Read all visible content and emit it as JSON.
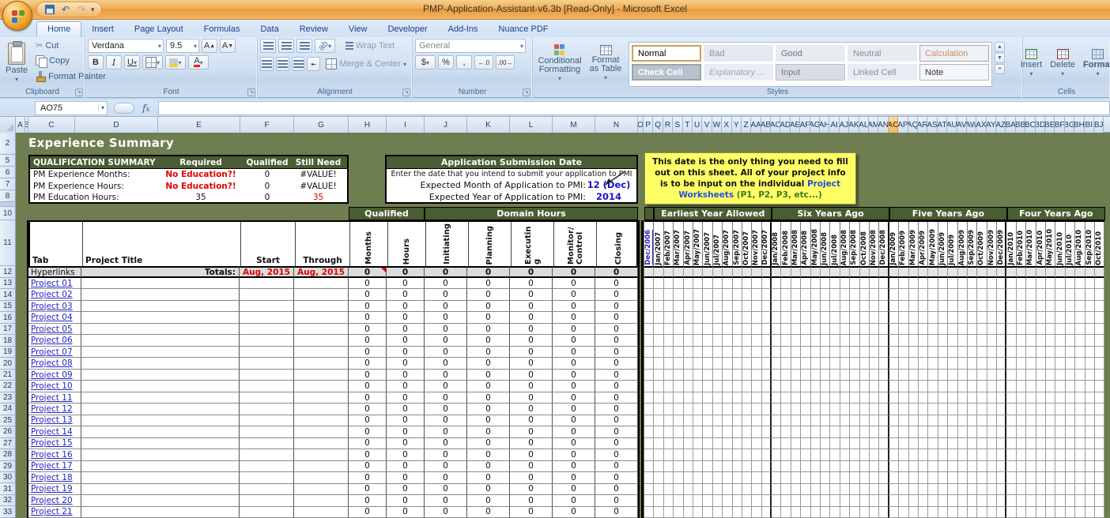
{
  "title_bar": {
    "title": "PMP-Application-Assistant-v6.3b  [Read-Only] - Microsoft Excel"
  },
  "ribbon": {
    "tabs": [
      "Home",
      "Insert",
      "Page Layout",
      "Formulas",
      "Data",
      "Review",
      "View",
      "Developer",
      "Add-Ins",
      "Nuance PDF"
    ],
    "active_tab": "Home",
    "clipboard": {
      "label": "Clipboard",
      "paste": "Paste",
      "cut": "Cut",
      "copy": "Copy",
      "format_painter": "Format Painter"
    },
    "font": {
      "label": "Font",
      "family": "Verdana",
      "size": "9.5"
    },
    "alignment": {
      "label": "Alignment",
      "wrap_text": "Wrap Text",
      "merge_center": "Merge & Center"
    },
    "number": {
      "label": "Number",
      "format": "General"
    },
    "styles": {
      "label": "Styles",
      "conditional": "Conditional Formatting",
      "format_table": "Format as Table",
      "gallery": [
        "Normal",
        "Bad",
        "Good",
        "Neutral",
        "Calculation",
        "Check Cell",
        "Explanatory ...",
        "Input",
        "Linked Cell",
        "Note"
      ]
    },
    "cells": {
      "label": "Cells",
      "insert": "Insert",
      "delete": "Delete",
      "format": "Format"
    }
  },
  "formula_bar": {
    "name_box": "AO75"
  },
  "grid": {
    "columns": [
      "A",
      "B",
      "C",
      "D",
      "E",
      "F",
      "G",
      "H",
      "I",
      "J",
      "K",
      "L",
      "M",
      "N",
      "O",
      "P",
      "Q",
      "R",
      "S",
      "T",
      "U",
      "V",
      "W",
      "X",
      "Y",
      "Z",
      "AA",
      "AB",
      "AC",
      "AD",
      "AE",
      "AF",
      "AG",
      "AH",
      "AI",
      "AJ",
      "AK",
      "AL",
      "AM",
      "AN",
      "AO",
      "AP",
      "AQ",
      "AR",
      "AS",
      "AT",
      "AU",
      "AV",
      "AW",
      "AX",
      "AY",
      "AZ",
      "BA",
      "BB",
      "BC",
      "BD",
      "BE",
      "BF",
      "BG",
      "BH",
      "BI",
      "BJ"
    ],
    "selected_column": "AO",
    "rows": [
      "2",
      "5",
      "6",
      "7",
      "8",
      "10",
      "11",
      "12",
      "13",
      "14",
      "15",
      "16",
      "17",
      "18",
      "19",
      "20",
      "21",
      "22",
      "23",
      "24",
      "25",
      "26",
      "27",
      "28",
      "29",
      "30",
      "31",
      "32",
      "33"
    ]
  },
  "sheet": {
    "title": "Experience Summary",
    "qualification": {
      "headers": [
        "QUALIFICATION SUMMARY",
        "Required",
        "Qualified",
        "Still Need"
      ],
      "rows": [
        {
          "label": "PM Experience Months:",
          "required": "No Education?!",
          "qualified": "0",
          "still_need": "#VALUE!",
          "required_red": true,
          "still_red": false
        },
        {
          "label": "PM Experience Hours:",
          "required": "No Education?!",
          "qualified": "0",
          "still_need": "#VALUE!",
          "required_red": true,
          "still_red": false
        },
        {
          "label": "PM Education Hours:",
          "required": "35",
          "qualified": "0",
          "still_need": "35",
          "required_red": false,
          "still_red": true
        }
      ]
    },
    "submission": {
      "title": "Application Submission Date",
      "instruction": "Enter the date that you intend to submit your application to PMI",
      "month_label": "Expected Month of Application to PMI:",
      "month_value": "12 (Dec)",
      "year_label": "Expected Year of Application to PMI:",
      "year_value": "2014"
    },
    "note": {
      "text_before": "This date is the only thing you need to fill out on this sheet. All of your project info is to be input on the individual ",
      "link_text": "Project Worksheets",
      "text_after": " (P1, P2, P3, etc...)"
    },
    "table": {
      "group_qualified": "Qualified",
      "group_domain": "Domain Hours",
      "col_tab": "Tab",
      "col_title": "Project Title",
      "col_start": "Start",
      "col_through": "Through",
      "v_headers": [
        "Months",
        "Hours",
        "Initiating",
        "Planning",
        "Executin g",
        "Monitor/ Control",
        "Closing"
      ],
      "totals": {
        "tab": "Hyperlinks",
        "label": "Totals:",
        "start": "Aug, 2015",
        "through": "Aug, 2015",
        "values": [
          "0",
          "0",
          "0",
          "0",
          "0",
          "0",
          "0"
        ]
      },
      "projects": [
        "Project 01",
        "Project 02",
        "Project 03",
        "Project 04",
        "Project 05",
        "Project 06",
        "Project 07",
        "Project 08",
        "Project 09",
        "Project 10",
        "Project 11",
        "Project 12",
        "Project 13",
        "Project 14",
        "Project 15",
        "Project 16",
        "Project 17",
        "Project 18",
        "Project 19",
        "Project 20",
        "Project 21"
      ],
      "project_cell_value": "0"
    },
    "years": {
      "groups": [
        {
          "label": "Earliest Year Allowed",
          "months": [
            "Dec/2006",
            "Jan/2007",
            "Feb/2007",
            "Mar/2007",
            "Apr/2007",
            "May/2007",
            "Jun/2007",
            "Jul/2007",
            "Aug/2007",
            "Sep/2007",
            "Oct/2007",
            "Nov/2007",
            "Dec/2007"
          ]
        },
        {
          "label": "Six Years Ago",
          "months": [
            "Jan/2008",
            "Feb/2008",
            "Mar/2008",
            "Apr/2008",
            "May/2008",
            "Jun/2008",
            "Jul/2008",
            "Aug/2008",
            "Sep/2008",
            "Oct/2008",
            "Nov/2008",
            "Dec/2008"
          ]
        },
        {
          "label": "Five Years Ago",
          "months": [
            "Jan/2009",
            "Feb/2009",
            "Mar/2009",
            "Apr/2009",
            "May/2009",
            "Jun/2009",
            "Jul/2009",
            "Aug/2009",
            "Sep/2009",
            "Oct/2009",
            "Nov/2009",
            "Dec/2009"
          ]
        },
        {
          "label": "Four Years Ago",
          "months": [
            "Jan/2010",
            "Feb/2010",
            "Mar/2010",
            "Apr/2010",
            "May/2010",
            "Jun/2010",
            "Jul/2010",
            "Aug/2010",
            "Sep/2010",
            "Oct/2010"
          ]
        }
      ]
    }
  }
}
